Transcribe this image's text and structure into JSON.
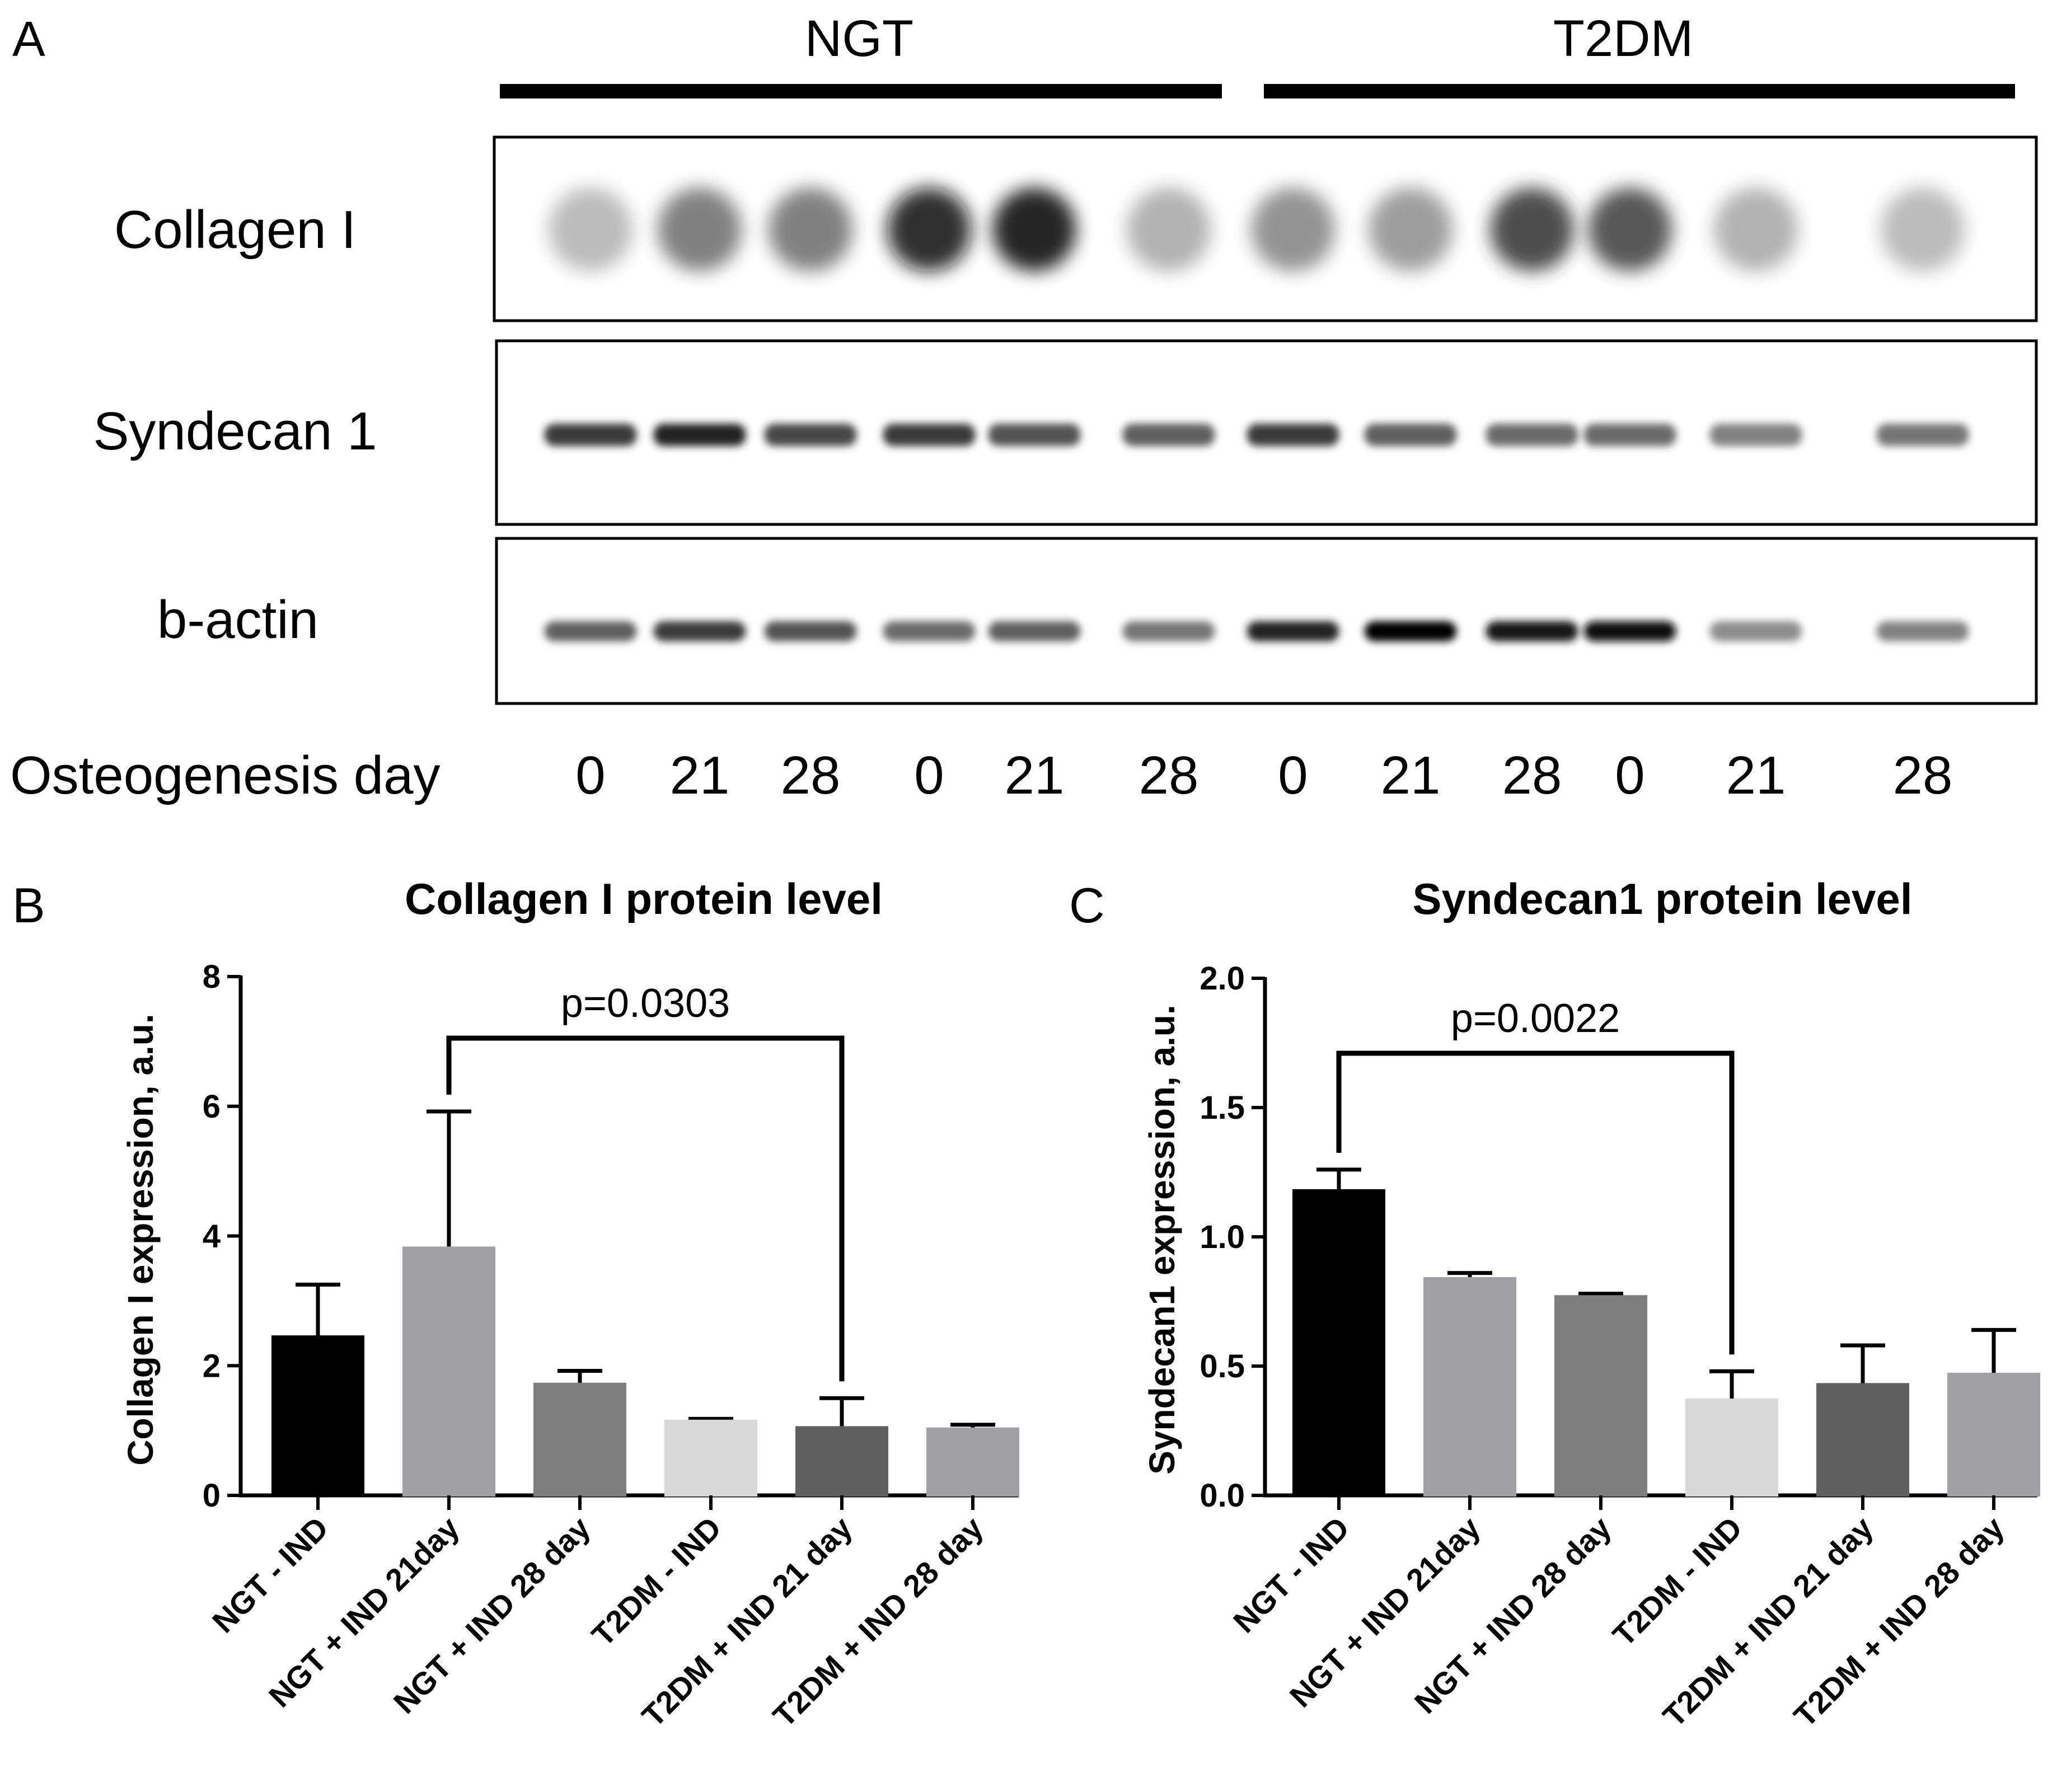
{
  "panel_a": {
    "label": "A",
    "groups": [
      {
        "name": "NGT"
      },
      {
        "name": "T2DM"
      }
    ],
    "blots": [
      {
        "label": "Collagen I",
        "intensities": [
          0.25,
          0.55,
          0.55,
          0.95,
          1.0,
          0.3,
          0.45,
          0.4,
          0.8,
          0.75,
          0.3,
          0.25
        ]
      },
      {
        "label": "Syndecan 1",
        "intensities": [
          0.75,
          0.85,
          0.7,
          0.75,
          0.65,
          0.6,
          0.75,
          0.6,
          0.55,
          0.55,
          0.45,
          0.5
        ]
      },
      {
        "label": "b-actin",
        "intensities": [
          0.6,
          0.75,
          0.65,
          0.55,
          0.6,
          0.5,
          0.85,
          1.0,
          0.9,
          0.95,
          0.4,
          0.45
        ]
      }
    ],
    "day_label": "Osteogenesis day",
    "days": [
      "0",
      "21",
      "28",
      "0",
      "21",
      "28",
      "0",
      "21",
      "28",
      "0",
      "21",
      "28"
    ]
  },
  "chart_data": [
    {
      "panel_label": "B",
      "type": "bar",
      "title": "Collagen I protein level",
      "ylabel": "Collagen I expression, a.u.",
      "xlabel": "",
      "ylim": [
        0,
        8
      ],
      "yticks": [
        "0",
        "2",
        "4",
        "6",
        "8"
      ],
      "categories": [
        "NGT - IND",
        "NGT + IND 21day",
        "NGT + IND 28 day",
        "T2DM - IND",
        "T2DM + IND 21 day",
        "T2DM + IND 28 day"
      ],
      "values": [
        2.45,
        3.82,
        1.72,
        1.15,
        1.05,
        1.03
      ],
      "errors": [
        0.8,
        2.1,
        0.2,
        0.03,
        0.45,
        0.06
      ],
      "colors": [
        "#000000",
        "#a1a1a5",
        "#7e7e7e",
        "#d8d8d8",
        "#5f5f5f",
        "#a1a1a5"
      ],
      "significance": {
        "from": 1,
        "to": 4,
        "label": "p=0.0303"
      },
      "grid": false
    },
    {
      "panel_label": "C",
      "type": "bar",
      "title": "Syndecan1 protein level",
      "ylabel": "Syndecan1 expression, a.u.",
      "xlabel": "",
      "ylim": [
        0,
        2.0
      ],
      "yticks": [
        "0.0",
        "0.5",
        "1.0",
        "1.5",
        "2.0"
      ],
      "categories": [
        "NGT - IND",
        "NGT + IND 21day",
        "NGT + IND 28 day",
        "T2DM - IND",
        "T2DM + IND 21 day",
        "T2DM + IND 28 day"
      ],
      "values": [
        1.18,
        0.84,
        0.77,
        0.37,
        0.43,
        0.47
      ],
      "errors": [
        0.08,
        0.02,
        0.01,
        0.11,
        0.15,
        0.17
      ],
      "colors": [
        "#000000",
        "#a1a1a5",
        "#7e7e7e",
        "#d8d8d8",
        "#5f5f5f",
        "#a1a1a5"
      ],
      "significance": {
        "from": 0,
        "to": 3,
        "label": "p=0.0022"
      },
      "grid": false
    }
  ]
}
